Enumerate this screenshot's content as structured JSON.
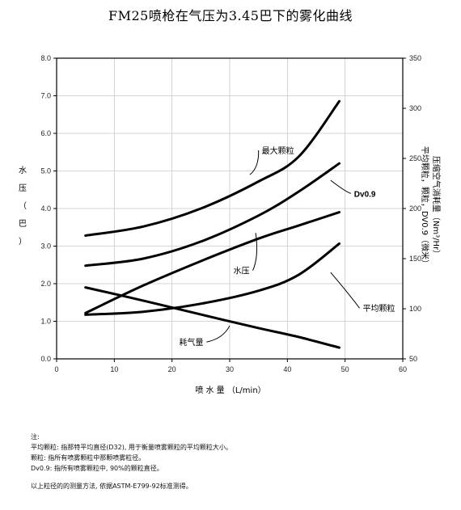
{
  "title": "FM25喷枪在气压为3.45巴下的雾化曲线",
  "chart_data": {
    "type": "line",
    "title": "FM25喷枪在气压为3.45巴下的雾化曲线",
    "xlabel": "喷 水 量 （L/min）",
    "ylabel_left": [
      "水",
      "压",
      "（",
      "巴",
      "）"
    ],
    "ylabel_right_1": "压缩空气消耗量（Nm³/Hr）",
    "ylabel_right_2": "平均颗粒，颗粒，DV0.9（微米）",
    "xlim": [
      0,
      60
    ],
    "ylim_left": [
      0,
      8
    ],
    "ylim_right": [
      50,
      350
    ],
    "x_ticks": [
      "0",
      "10",
      "20",
      "30",
      "40",
      "50",
      "60"
    ],
    "y_left_ticks": [
      "0.0",
      "1.0",
      "2.0",
      "3.0",
      "4.0",
      "5.0",
      "6.0",
      "7.0",
      "8.0"
    ],
    "y_right_ticks": [
      "50",
      "100",
      "150",
      "200",
      "250",
      "300",
      "350"
    ],
    "series": [
      {
        "name": "最大颗粒",
        "axis": "right",
        "x": [
          5,
          15,
          25,
          35,
          42,
          49
        ],
        "values": [
          173,
          182,
          200,
          227,
          252,
          307
        ]
      },
      {
        "name": "Dv0.9",
        "axis": "right",
        "x": [
          5,
          15,
          25,
          35,
          42,
          49
        ],
        "values": [
          143,
          150,
          167,
          193,
          217,
          245
        ]
      },
      {
        "name": "水压",
        "axis": "left",
        "x": [
          5,
          15,
          25,
          35,
          42,
          49
        ],
        "values": [
          1.22,
          1.95,
          2.6,
          3.2,
          3.55,
          3.9
        ]
      },
      {
        "name": "平均颗粒",
        "axis": "right",
        "x": [
          5,
          15,
          25,
          35,
          42,
          49
        ],
        "values": [
          94,
          97,
          105,
          118,
          134,
          165
        ]
      },
      {
        "name": "耗气量",
        "axis": "left",
        "x": [
          5,
          15,
          25,
          35,
          42,
          49
        ],
        "values": [
          1.9,
          1.55,
          1.18,
          0.82,
          0.58,
          0.3
        ]
      }
    ],
    "series_labels": [
      {
        "text": "最大颗粒",
        "series": "最大颗粒",
        "anchor_x": 33.5,
        "anchor_y": 4.9,
        "label_x": 35,
        "label_y": 5.55,
        "style": "normal"
      },
      {
        "text": "Dv0.9",
        "series": "Dv0.9",
        "anchor_x": 47.5,
        "anchor_y": 4.75,
        "label_x": 51,
        "label_y": 4.4,
        "style": "bold"
      },
      {
        "text": "水压",
        "series": "水压",
        "anchor_x": 34.5,
        "anchor_y": 3.35,
        "label_x": 34,
        "label_y": 2.35,
        "style": "normal"
      },
      {
        "text": "平均颗粒",
        "series": "平均颗粒",
        "anchor_x": 47.5,
        "anchor_y": 2.3,
        "label_x": 52.5,
        "label_y": 1.35,
        "style": "normal"
      },
      {
        "text": "耗气量",
        "series": "耗气量",
        "anchor_x": 30,
        "anchor_y": 0.88,
        "label_x": 26,
        "label_y": 0.45,
        "style": "normal"
      }
    ],
    "grid": true,
    "legend": "none"
  },
  "notes": {
    "heading": "注:",
    "lines": [
      "平均颗粒: 指那特平均直径(D32), 用于衡量喷雾颗粒的平均颗粒大小。",
      "颗粒: 指所有喷雾颗粒中那颗喷雾粒径。",
      "Dv0.9:      指所有喷雾颗粒中, 90%的颗粒直径。"
    ],
    "footer": "以上粒径的的测量方法, 依据ASTM-E799-92标准测得。"
  }
}
